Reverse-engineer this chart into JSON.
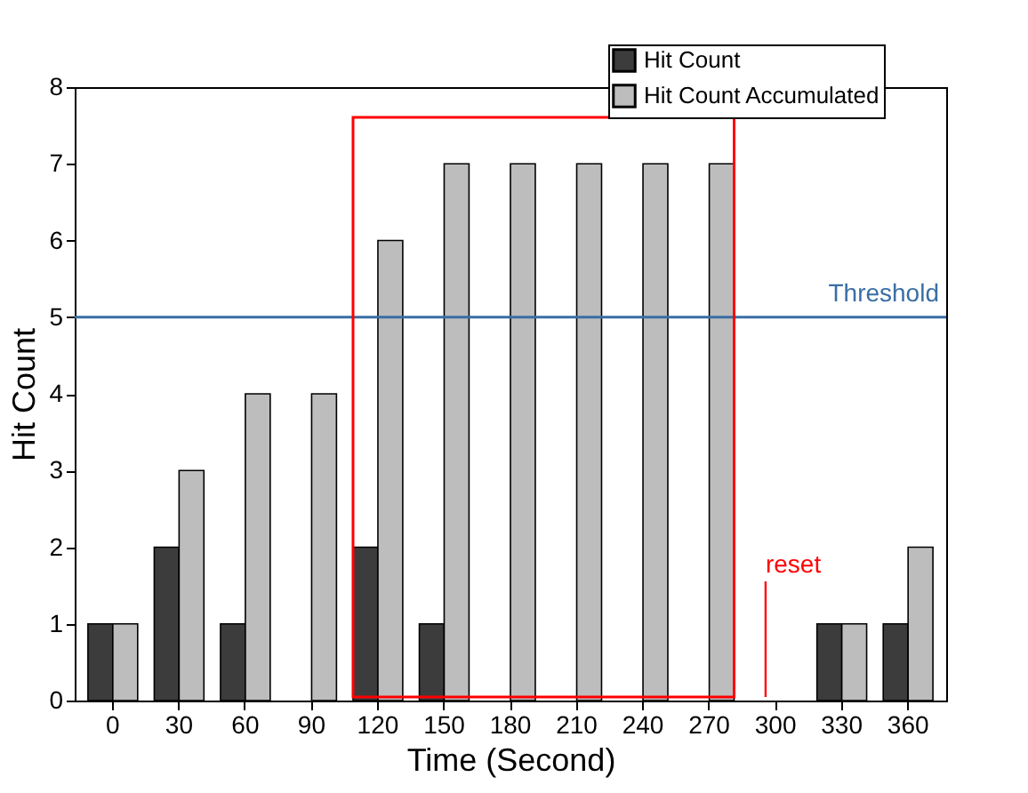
{
  "chart_data": {
    "type": "bar",
    "xlabel": "Time (Second)",
    "ylabel": "Hit Count",
    "categories": [
      "0",
      "30",
      "60",
      "90",
      "120",
      "150",
      "180",
      "210",
      "240",
      "270",
      "300",
      "330",
      "360"
    ],
    "series": [
      {
        "name": "Hit Count",
        "color": "#3c3c3c",
        "values": [
          1,
          2,
          1,
          null,
          2,
          1,
          null,
          null,
          null,
          null,
          null,
          1,
          1
        ]
      },
      {
        "name": "Hit Count Accumulated",
        "color": "#bdbdbd",
        "values": [
          1,
          3,
          4,
          4,
          6,
          7,
          7,
          7,
          7,
          7,
          null,
          1,
          2
        ]
      }
    ],
    "ylim": [
      0,
      8
    ],
    "yticks": [
      0,
      1,
      2,
      3,
      4,
      5,
      6,
      7,
      8
    ],
    "ref_lines": [
      {
        "axis": "y",
        "value": 5,
        "label": "Threshold",
        "color": "#3a6ea5"
      }
    ],
    "annotations": [
      "reset"
    ],
    "legend": "top right",
    "grid": false
  }
}
